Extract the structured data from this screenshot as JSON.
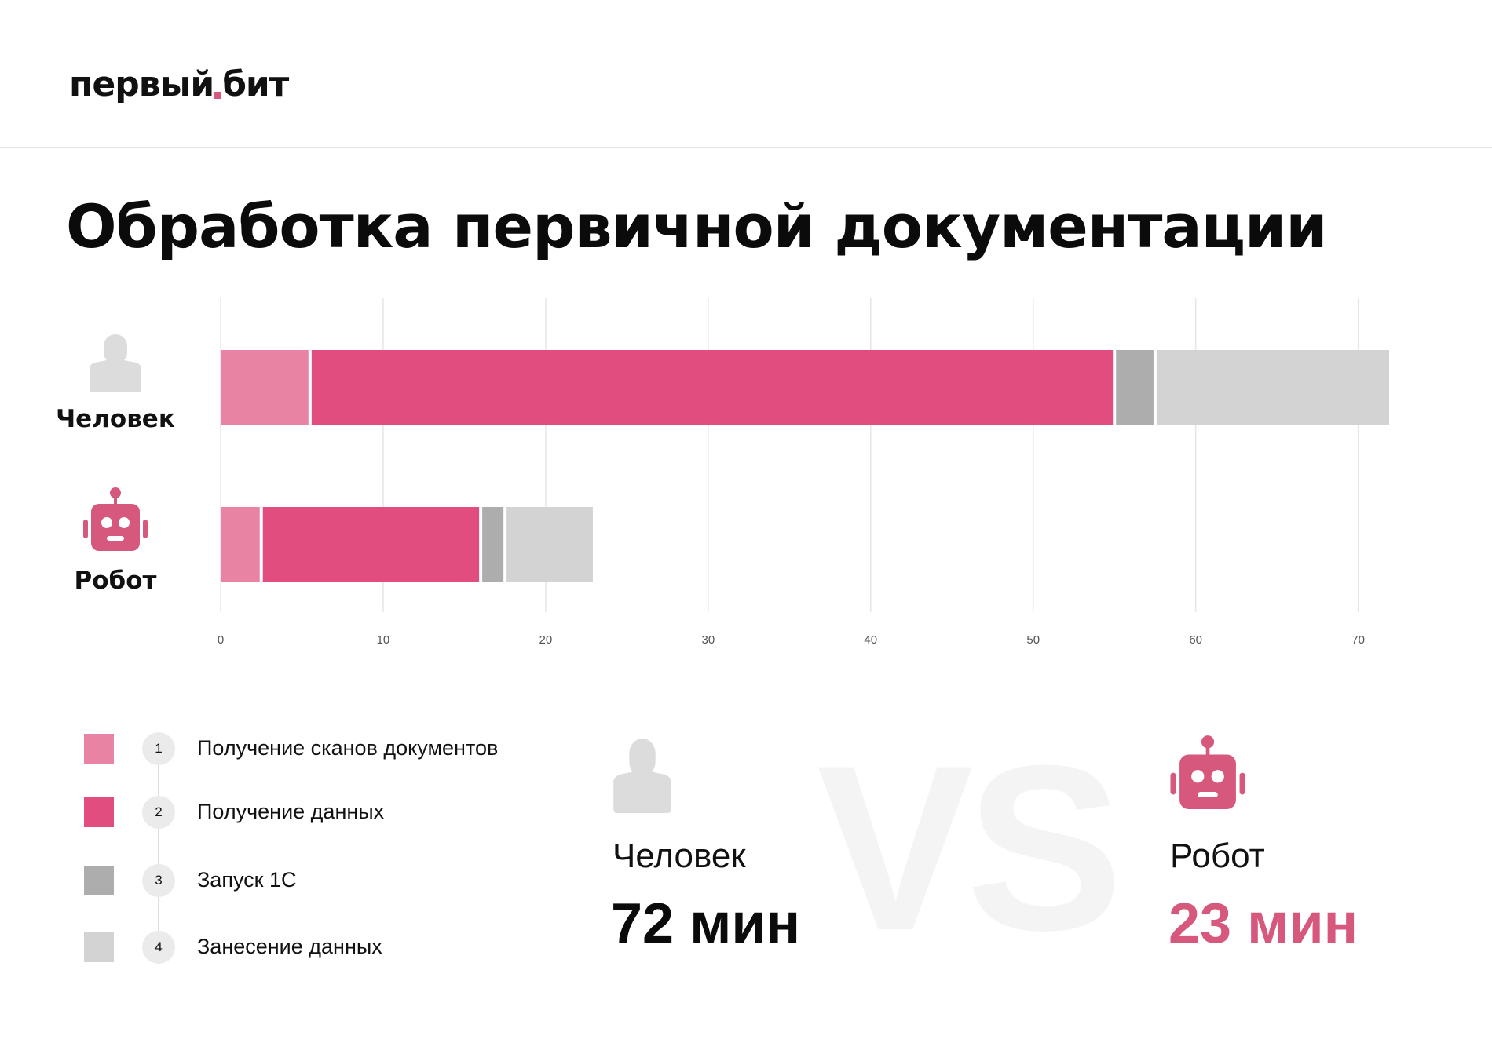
{
  "header": {
    "logo_text_left": "первый",
    "logo_text_right": "бит"
  },
  "title": "Обработка первичной документации",
  "colors": {
    "stage1": "#e983a4",
    "stage2": "#e04d7e",
    "stage3": "#adadad",
    "stage4": "#d3d3d3",
    "robot": "#d6587c",
    "person": "#dcdcdc"
  },
  "chart_data": {
    "type": "bar",
    "orientation": "horizontal-stacked",
    "categories": [
      "Человек",
      "Робот"
    ],
    "series": [
      {
        "name": "Получение сканов документов",
        "values": [
          5.5,
          2.5
        ]
      },
      {
        "name": "Получение данных",
        "values": [
          49.5,
          13.5
        ]
      },
      {
        "name": "Запуск 1С",
        "values": [
          2.5,
          1.5
        ]
      },
      {
        "name": "Занесение данных",
        "values": [
          14.5,
          5.5
        ]
      }
    ],
    "xticks": [
      "0",
      "10",
      "20",
      "30",
      "40",
      "50",
      "60",
      "70"
    ],
    "xlim": [
      0,
      72
    ],
    "grid": true
  },
  "legend": [
    {
      "num": "1",
      "label": "Получение сканов документов"
    },
    {
      "num": "2",
      "label": "Получение данных"
    },
    {
      "num": "3",
      "label": "Запуск 1С"
    },
    {
      "num": "4",
      "label": "Занесение данных"
    }
  ],
  "comparison": {
    "person_label": "Человек",
    "person_value": "72 мин",
    "vs": "VS",
    "robot_label": "Робот",
    "robot_value": "23 мин"
  }
}
